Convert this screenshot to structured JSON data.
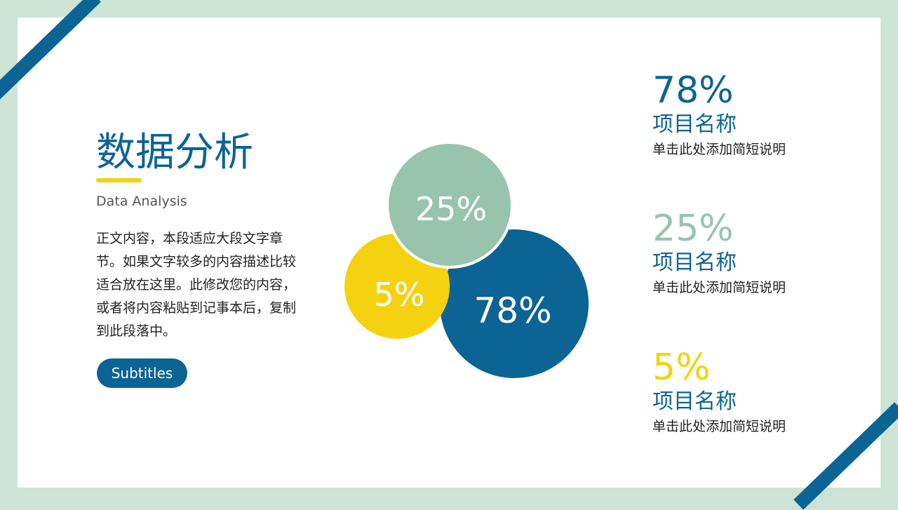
{
  "title": "数据分析",
  "subtitle": "Data Analysis",
  "body": "正文内容，本段适应大段文字章节。如果文字较多的内容描述比较适合放在这里。此修改您的内容，或者将内容粘贴到记事本后，复制到此段落中。",
  "button": "Subtitles",
  "colors": {
    "blue": "#0b6494",
    "green": "#98c4ad",
    "yellow": "#f5d20f",
    "background": "#cde3d6"
  },
  "bubbles": [
    {
      "label": "25%",
      "value": 25,
      "color": "#98c4ad"
    },
    {
      "label": "5%",
      "value": 5,
      "color": "#f5d20f"
    },
    {
      "label": "78%",
      "value": 78,
      "color": "#0b6494"
    }
  ],
  "stats": [
    {
      "value": "78%",
      "name": "项目名称",
      "desc": "单击此处添加简短说明",
      "color": "#0b6494"
    },
    {
      "value": "25%",
      "name": "项目名称",
      "desc": "单击此处添加简短说明",
      "color": "#98c4ad"
    },
    {
      "value": "5%",
      "name": "项目名称",
      "desc": "单击此处添加简短说明",
      "color": "#f5d20f"
    }
  ]
}
